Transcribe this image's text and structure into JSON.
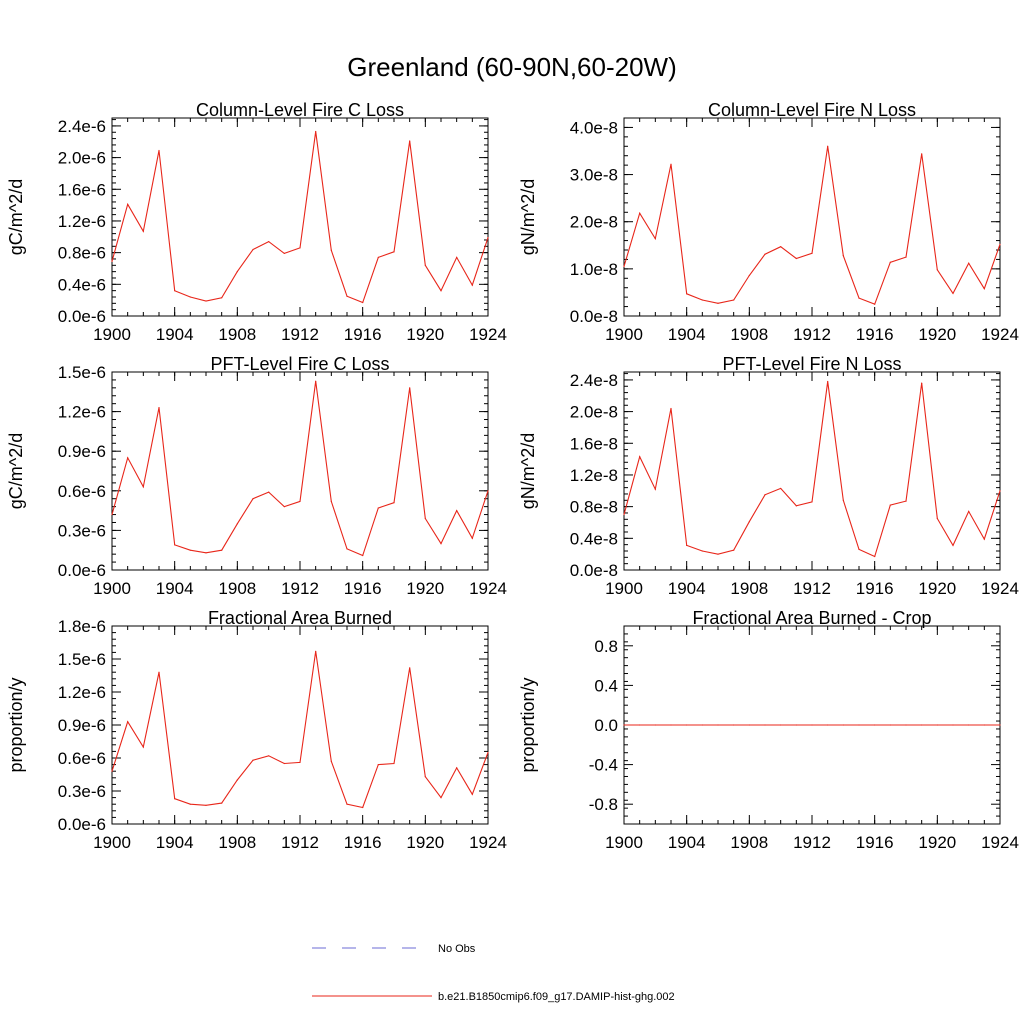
{
  "figure": {
    "title": "Greenland (60-90N,60-20W)"
  },
  "legend": {
    "entries": [
      {
        "label": "No Obs",
        "color": "#6b6bd6",
        "dash": true
      },
      {
        "label": "b.e21.B1850cmip6.f09_g17.DAMIP-hist-ghg.002",
        "color": "#e8261a",
        "dash": false
      }
    ]
  },
  "chart_data": [
    {
      "type": "line",
      "title": "Column-Level Fire C Loss",
      "ylabel": "gC/m^2/d",
      "xlabel": "",
      "xlim": [
        1900,
        1924
      ],
      "ylim": [
        0,
        2.5e-06
      ],
      "xticks": [
        1900,
        1904,
        1908,
        1912,
        1916,
        1920,
        1924
      ],
      "yticks": [
        0,
        4e-07,
        8e-07,
        1.2e-06,
        1.6e-06,
        2e-06,
        2.4e-06
      ],
      "ytick_labels": [
        "0.0e-6",
        "0.4e-6",
        "0.8e-6",
        "1.2e-6",
        "1.6e-6",
        "2.0e-6",
        "2.4e-6"
      ],
      "x": [
        1900,
        1901,
        1902,
        1903,
        1904,
        1905,
        1906,
        1907,
        1908,
        1909,
        1910,
        1911,
        1912,
        1913,
        1914,
        1915,
        1916,
        1917,
        1918,
        1919,
        1920,
        1921,
        1922,
        1923,
        1924
      ],
      "series": [
        {
          "name": "b.e21.B1850cmip6.f09_g17.DAMIP-hist-ghg.002",
          "color": "#e8261a",
          "values": [
            6.9e-07,
            1.41e-06,
            1.07e-06,
            2.09e-06,
            3.2e-07,
            2.4e-07,
            1.9e-07,
            2.3e-07,
            5.6e-07,
            8.4e-07,
            9.4e-07,
            7.9e-07,
            8.6e-07,
            2.33e-06,
            8.3e-07,
            2.5e-07,
            1.7e-07,
            7.4e-07,
            8.1e-07,
            2.21e-06,
            6.4e-07,
            3.2e-07,
            7.4e-07,
            3.9e-07,
            9.9e-07
          ]
        }
      ]
    },
    {
      "type": "line",
      "title": "Column-Level Fire N Loss",
      "ylabel": "gN/m^2/d",
      "xlabel": "",
      "xlim": [
        1900,
        1924
      ],
      "ylim": [
        0,
        4.2e-08
      ],
      "xticks": [
        1900,
        1904,
        1908,
        1912,
        1916,
        1920,
        1924
      ],
      "yticks": [
        0,
        1e-08,
        2e-08,
        3e-08,
        4e-08
      ],
      "ytick_labels": [
        "0.0e-8",
        "1.0e-8",
        "2.0e-8",
        "3.0e-8",
        "4.0e-8"
      ],
      "x": [
        1900,
        1901,
        1902,
        1903,
        1904,
        1905,
        1906,
        1907,
        1908,
        1909,
        1910,
        1911,
        1912,
        1913,
        1914,
        1915,
        1916,
        1917,
        1918,
        1919,
        1920,
        1921,
        1922,
        1923,
        1924
      ],
      "series": [
        {
          "name": "b.e21.B1850cmip6.f09_g17.DAMIP-hist-ghg.002",
          "color": "#e8261a",
          "values": [
            1.05e-08,
            2.18e-08,
            1.64e-08,
            3.22e-08,
            4.7e-09,
            3.4e-09,
            2.7e-09,
            3.4e-09,
            8.6e-09,
            1.31e-08,
            1.47e-08,
            1.22e-08,
            1.33e-08,
            3.6e-08,
            1.28e-08,
            3.8e-09,
            2.5e-09,
            1.14e-08,
            1.25e-08,
            3.44e-08,
            9.8e-09,
            4.8e-09,
            1.12e-08,
            5.8e-09,
            1.52e-08
          ]
        }
      ]
    },
    {
      "type": "line",
      "title": "PFT-Level Fire C Loss",
      "ylabel": "gC/m^2/d",
      "xlabel": "",
      "xlim": [
        1900,
        1924
      ],
      "ylim": [
        0,
        1.5e-06
      ],
      "xticks": [
        1900,
        1904,
        1908,
        1912,
        1916,
        1920,
        1924
      ],
      "yticks": [
        0,
        3e-07,
        6e-07,
        9e-07,
        1.2e-06,
        1.5e-06
      ],
      "ytick_labels": [
        "0.0e-6",
        "0.3e-6",
        "0.6e-6",
        "0.9e-6",
        "1.2e-6",
        "1.5e-6"
      ],
      "x": [
        1900,
        1901,
        1902,
        1903,
        1904,
        1905,
        1906,
        1907,
        1908,
        1909,
        1910,
        1911,
        1912,
        1913,
        1914,
        1915,
        1916,
        1917,
        1918,
        1919,
        1920,
        1921,
        1922,
        1923,
        1924
      ],
      "series": [
        {
          "name": "b.e21.B1850cmip6.f09_g17.DAMIP-hist-ghg.002",
          "color": "#e8261a",
          "values": [
            4.2e-07,
            8.5e-07,
            6.3e-07,
            1.23e-06,
            1.9e-07,
            1.5e-07,
            1.3e-07,
            1.5e-07,
            3.5e-07,
            5.4e-07,
            5.9e-07,
            4.8e-07,
            5.2e-07,
            1.43e-06,
            5.2e-07,
            1.6e-07,
            1.1e-07,
            4.7e-07,
            5.1e-07,
            1.38e-06,
            3.9e-07,
            2e-07,
            4.5e-07,
            2.4e-07,
            6e-07
          ]
        }
      ]
    },
    {
      "type": "line",
      "title": "PFT-Level Fire N Loss",
      "ylabel": "gN/m^2/d",
      "xlabel": "",
      "xlim": [
        1900,
        1924
      ],
      "ylim": [
        0,
        2.5e-08
      ],
      "xticks": [
        1900,
        1904,
        1908,
        1912,
        1916,
        1920,
        1924
      ],
      "yticks": [
        0,
        4e-09,
        8e-09,
        1.2e-08,
        1.6e-08,
        2e-08,
        2.4e-08
      ],
      "ytick_labels": [
        "0.0e-8",
        "0.4e-8",
        "0.8e-8",
        "1.2e-8",
        "1.6e-8",
        "2.0e-8",
        "2.4e-8"
      ],
      "x": [
        1900,
        1901,
        1902,
        1903,
        1904,
        1905,
        1906,
        1907,
        1908,
        1909,
        1910,
        1911,
        1912,
        1913,
        1914,
        1915,
        1916,
        1917,
        1918,
        1919,
        1920,
        1921,
        1922,
        1923,
        1924
      ],
      "series": [
        {
          "name": "b.e21.B1850cmip6.f09_g17.DAMIP-hist-ghg.002",
          "color": "#e8261a",
          "values": [
            7e-09,
            1.43e-08,
            1.02e-08,
            2.04e-08,
            3.1e-09,
            2.4e-09,
            2e-09,
            2.5e-09,
            6.1e-09,
            9.5e-09,
            1.03e-08,
            8.1e-09,
            8.6e-09,
            2.38e-08,
            8.8e-09,
            2.6e-09,
            1.7e-09,
            8.2e-09,
            8.7e-09,
            2.36e-08,
            6.5e-09,
            3.1e-09,
            7.4e-09,
            3.9e-09,
            1e-08
          ]
        }
      ]
    },
    {
      "type": "line",
      "title": "Fractional Area Burned",
      "ylabel": "proportion/y",
      "xlabel": "",
      "xlim": [
        1900,
        1924
      ],
      "ylim": [
        0,
        1.8e-06
      ],
      "xticks": [
        1900,
        1904,
        1908,
        1912,
        1916,
        1920,
        1924
      ],
      "yticks": [
        0,
        3e-07,
        6e-07,
        9e-07,
        1.2e-06,
        1.5e-06,
        1.8e-06
      ],
      "ytick_labels": [
        "0.0e-6",
        "0.3e-6",
        "0.6e-6",
        "0.9e-6",
        "1.2e-6",
        "1.5e-6",
        "1.8e-6"
      ],
      "x": [
        1900,
        1901,
        1902,
        1903,
        1904,
        1905,
        1906,
        1907,
        1908,
        1909,
        1910,
        1911,
        1912,
        1913,
        1914,
        1915,
        1916,
        1917,
        1918,
        1919,
        1920,
        1921,
        1922,
        1923,
        1924
      ],
      "series": [
        {
          "name": "b.e21.B1850cmip6.f09_g17.DAMIP-hist-ghg.002",
          "color": "#e8261a",
          "values": [
            4.8e-07,
            9.3e-07,
            7e-07,
            1.38e-06,
            2.3e-07,
            1.8e-07,
            1.7e-07,
            1.9e-07,
            4e-07,
            5.8e-07,
            6.2e-07,
            5.5e-07,
            5.6e-07,
            1.57e-06,
            5.7e-07,
            1.8e-07,
            1.5e-07,
            5.4e-07,
            5.5e-07,
            1.42e-06,
            4.3e-07,
            2.4e-07,
            5.1e-07,
            2.7e-07,
            6.5e-07
          ]
        }
      ]
    },
    {
      "type": "line",
      "title": "Fractional Area Burned - Crop",
      "ylabel": "proportion/y",
      "xlabel": "",
      "xlim": [
        1900,
        1924
      ],
      "ylim": [
        -1.0,
        1.0
      ],
      "xticks": [
        1900,
        1904,
        1908,
        1912,
        1916,
        1920,
        1924
      ],
      "yticks": [
        -0.8,
        -0.4,
        0.0,
        0.4,
        0.8
      ],
      "ytick_labels": [
        "-0.8",
        "-0.4",
        "0.0",
        "0.4",
        "0.8"
      ],
      "x": [
        1900,
        1901,
        1902,
        1903,
        1904,
        1905,
        1906,
        1907,
        1908,
        1909,
        1910,
        1911,
        1912,
        1913,
        1914,
        1915,
        1916,
        1917,
        1918,
        1919,
        1920,
        1921,
        1922,
        1923,
        1924
      ],
      "series": [
        {
          "name": "b.e21.B1850cmip6.f09_g17.DAMIP-hist-ghg.002",
          "color": "#e8261a",
          "values": [
            0,
            0,
            0,
            0,
            0,
            0,
            0,
            0,
            0,
            0,
            0,
            0,
            0,
            0,
            0,
            0,
            0,
            0,
            0,
            0,
            0,
            0,
            0,
            0,
            0
          ]
        }
      ]
    }
  ]
}
